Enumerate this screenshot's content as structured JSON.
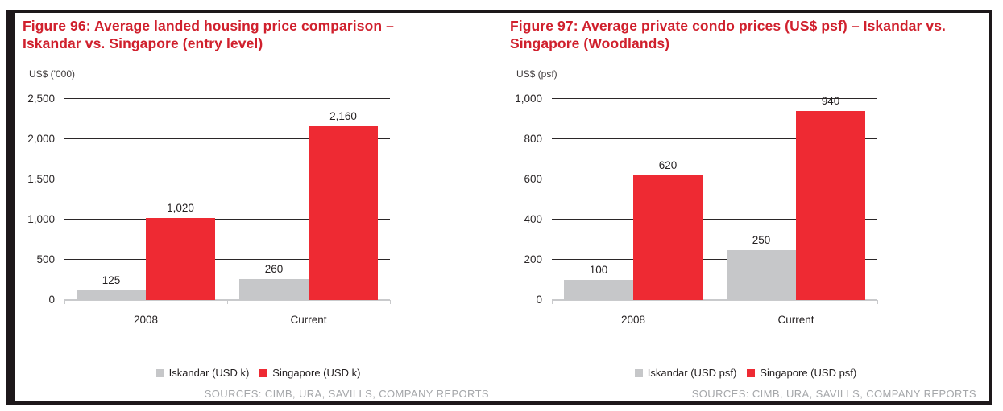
{
  "chart_data": [
    {
      "type": "bar",
      "title": "Figure 96: Average landed housing price comparison – Iskandar vs. Singapore (entry level)",
      "title_lines": [
        "Figure 96: Average landed housing price comparison –",
        "Iskandar vs. Singapore (entry level)"
      ],
      "ylabel": "US$ ('000)",
      "xlabel": "",
      "categories": [
        "2008",
        "Current"
      ],
      "series": [
        {
          "name": "Iskandar (USD k)",
          "color": "#c6c7c9",
          "values": [
            125,
            260
          ],
          "labels": [
            "125",
            "260"
          ]
        },
        {
          "name": "Singapore (USD k)",
          "color": "#ee2a33",
          "values": [
            1020,
            2160
          ],
          "labels": [
            "1,020",
            "2,160"
          ]
        }
      ],
      "ylim": [
        0,
        2500
      ],
      "yticks": [
        0,
        500,
        1000,
        1500,
        2000,
        2500
      ],
      "ytick_labels": [
        "0",
        "500",
        "1,000",
        "1,500",
        "2,000",
        "2,500"
      ],
      "grid": true,
      "legend_position": "bottom",
      "source": "SOURCES: CIMB, URA, SAVILLS, COMPANY REPORTS"
    },
    {
      "type": "bar",
      "title": "Figure 97: Average private condo prices (US$ psf) – Iskandar vs. Singapore (Woodlands)",
      "title_lines": [
        "Figure 97: Average private condo prices (US$ psf) – Iskandar vs.",
        "Singapore (Woodlands)"
      ],
      "ylabel": "US$ (psf)",
      "xlabel": "",
      "categories": [
        "2008",
        "Current"
      ],
      "series": [
        {
          "name": "Iskandar (USD psf)",
          "color": "#c6c7c9",
          "values": [
            100,
            250
          ],
          "labels": [
            "100",
            "250"
          ]
        },
        {
          "name": "Singapore (USD psf)",
          "color": "#ee2a33",
          "values": [
            620,
            940
          ],
          "labels": [
            "620",
            "940"
          ]
        }
      ],
      "ylim": [
        0,
        1000
      ],
      "yticks": [
        0,
        200,
        400,
        600,
        800,
        1000
      ],
      "ytick_labels": [
        "0",
        "200",
        "400",
        "600",
        "800",
        "1,000"
      ],
      "grid": true,
      "legend_position": "bottom",
      "source": "SOURCES: CIMB, URA, SAVILLS, COMPANY REPORTS"
    }
  ],
  "colors": {
    "title-red": "#d0202d",
    "bar-red": "#ee2a33",
    "bar-gray": "#c6c7c9",
    "gridline": "#2b2728",
    "axis-line": "#c9cacc",
    "source-text": "#a5a7aa",
    "frame": "#1d181a"
  }
}
